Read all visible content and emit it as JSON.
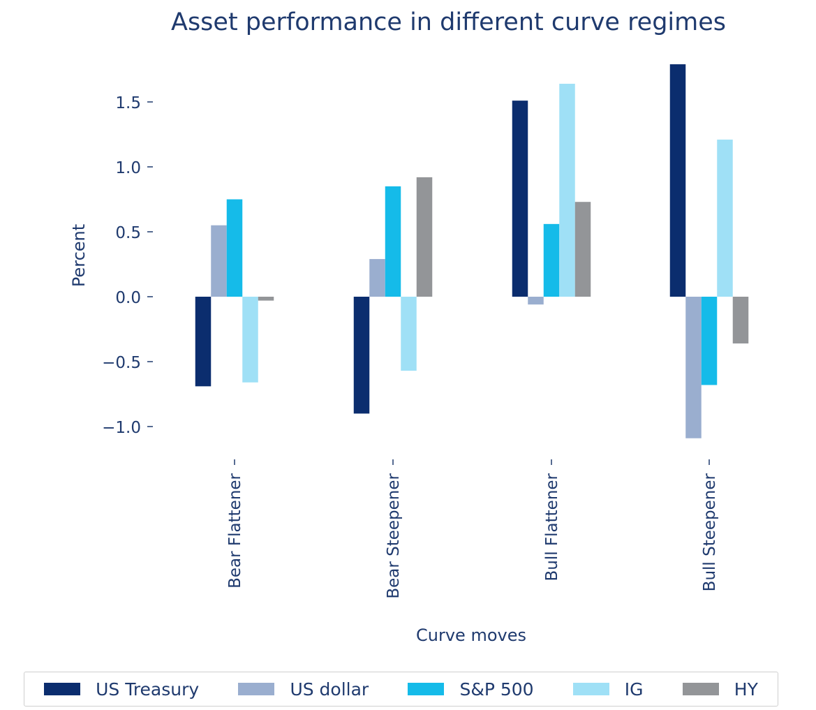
{
  "chart_data": {
    "type": "bar",
    "title": "Asset performance in different curve regimes",
    "xlabel": "Curve moves",
    "ylabel": "Percent",
    "categories": [
      "Bear Flattener",
      "Bear Steepener",
      "Bull Flattener",
      "Bull Steepener"
    ],
    "series": [
      {
        "name": "US Treasury",
        "color": "#0b2d6e",
        "values": [
          -0.69,
          -0.9,
          1.51,
          1.79
        ]
      },
      {
        "name": "US dollar",
        "color": "#9aaecf",
        "values": [
          0.55,
          0.29,
          -0.06,
          -1.09
        ]
      },
      {
        "name": "S&P 500",
        "color": "#15bbe9",
        "values": [
          0.75,
          0.85,
          0.56,
          -0.68
        ]
      },
      {
        "name": "IG",
        "color": "#9fe0f6",
        "values": [
          -0.66,
          -0.57,
          1.64,
          1.21
        ]
      },
      {
        "name": "HY",
        "color": "#939598",
        "values": [
          -0.03,
          0.92,
          0.73,
          -0.36
        ]
      }
    ],
    "yticks": [
      "1.5",
      "1.0",
      "0.5",
      "0.0",
      "−0.5",
      "−1.0"
    ],
    "ytick_values": [
      1.5,
      1.0,
      0.5,
      0.0,
      -0.5,
      -1.0
    ],
    "ylim": [
      -1.15,
      1.8
    ],
    "grid": false,
    "legend_position": "bottom"
  }
}
